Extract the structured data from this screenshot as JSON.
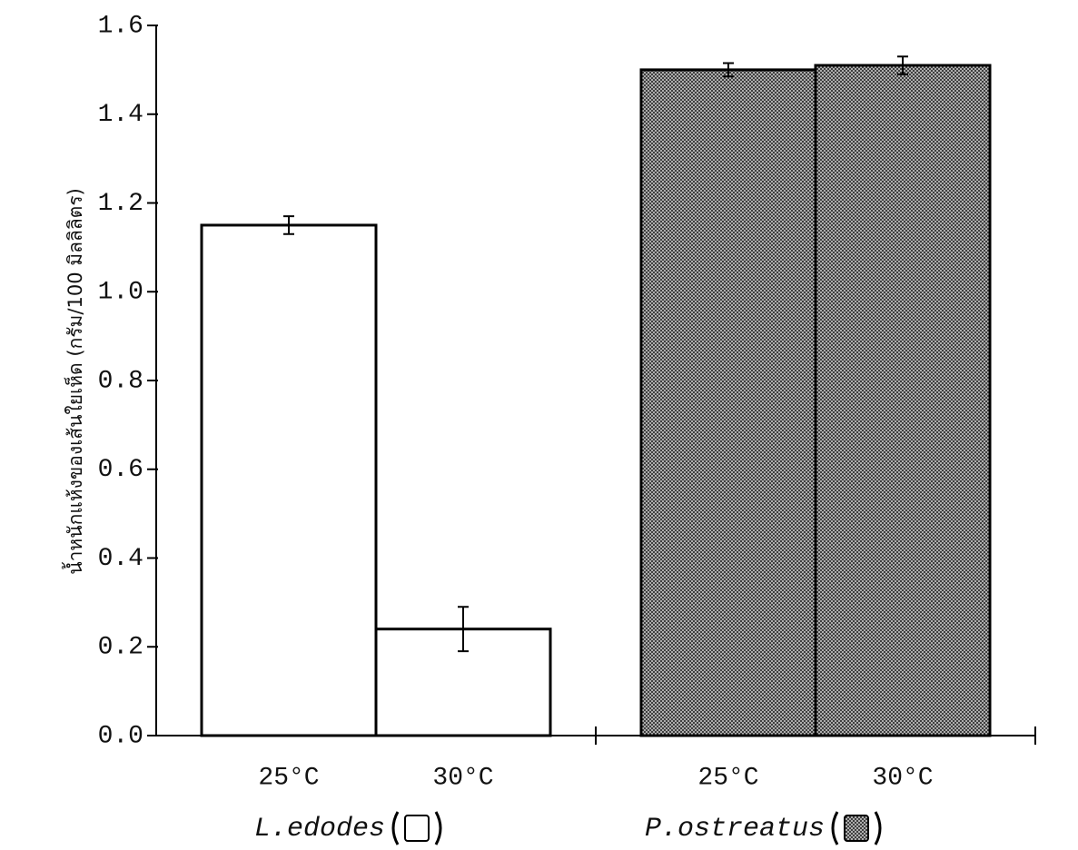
{
  "chart_data": {
    "type": "bar",
    "y_label": "น้ำหนักแห้งของเส้นใยเห็ด (กรัม/100 มิลลิลิตร)",
    "categories": [
      "25°C",
      "30°C"
    ],
    "series": [
      {
        "name": "L.edodes",
        "color": "#ffffff",
        "pattern": "none",
        "values": [
          1.15,
          0.24
        ],
        "errors": [
          0.02,
          0.05
        ]
      },
      {
        "name": "P.ostreatus",
        "color": "#8a8a8a",
        "pattern": "crosshatch",
        "values": [
          1.5,
          1.51
        ],
        "errors": [
          0.015,
          0.02
        ]
      }
    ],
    "ylim": [
      0,
      1.6
    ],
    "yticks": [
      {
        "value": 0,
        "label": "0.0"
      },
      0.2,
      0.4,
      0.6,
      0.8,
      {
        "value": 1,
        "label": "1.0"
      },
      1.2,
      1.4,
      1.6
    ]
  }
}
